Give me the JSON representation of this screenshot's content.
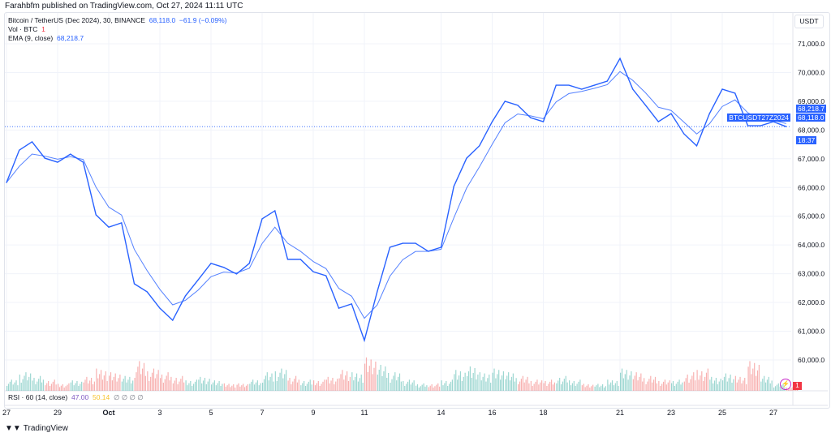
{
  "header": {
    "published": "Farahbfm published on TradingView.com, Oct 27, 2024 11:11 UTC"
  },
  "legend": {
    "symbol": "Bitcoin / TetherUS (Dec 2024), 30, BINANCE",
    "last": "68,118.0",
    "change": "−61.9 (−0.09%)",
    "vol_label": "Vol · BTC",
    "vol_value": "1",
    "ema_label": "EMA (9, close)",
    "ema_value": "68,218.7"
  },
  "price_axis": {
    "currency": "USDT",
    "ema_tag": "68,218.7",
    "last_tag": "68,118.0",
    "countdown": "18:37",
    "symbol_tag": "BTCUSDT27Z2024"
  },
  "rsi": {
    "label": "RSI · 60 (14, close)",
    "v1": "47.00",
    "v2": "50.14",
    "icons": "∅ ∅ ∅ ∅"
  },
  "badges": {
    "alert_count": "1"
  },
  "footer": {
    "brand": "TradingView"
  },
  "colors": {
    "price": "#2962ff",
    "up": "#26a69a",
    "down": "#ef5350",
    "grid": "#f0f3fa"
  },
  "chart_data": {
    "type": "line",
    "title": "Bitcoin / TetherUS (Dec 2024), 30, BINANCE",
    "ylim": [
      59500,
      71500
    ],
    "yticks": [
      60000,
      61000,
      62000,
      63000,
      64000,
      65000,
      66000,
      67000,
      68000,
      69000,
      70000,
      71000
    ],
    "ytick_labels": [
      "60,000.0",
      "61,000.0",
      "62,000.0",
      "63,000.0",
      "64,000.0",
      "65,000.0",
      "66,000.0",
      "67,000.0",
      "68,000.0",
      "69,000.0",
      "70,000.0",
      "71,000.0"
    ],
    "xtick_labels": [
      "27",
      "29",
      "Oct",
      "3",
      "5",
      "7",
      "9",
      "11",
      "14",
      "16",
      "18",
      "21",
      "23",
      "25",
      "27"
    ],
    "xtick_days": [
      0,
      2,
      4,
      6,
      8,
      10,
      12,
      14,
      17,
      19,
      21,
      24,
      26,
      28,
      30
    ],
    "grid": true,
    "series": [
      {
        "name": "BTCUSDT27Z2024",
        "x_half_days": [
          0,
          1,
          2,
          3,
          4,
          5,
          6,
          7,
          8,
          9,
          10,
          11,
          12,
          13,
          14,
          15,
          16,
          17,
          18,
          19,
          20,
          21,
          22,
          23,
          24,
          25,
          26,
          27,
          28,
          29,
          30,
          31,
          32,
          33,
          34,
          35,
          36,
          37,
          38,
          39,
          40,
          41,
          42,
          43,
          44,
          45,
          46,
          47,
          48,
          49,
          50,
          51,
          52,
          53,
          54,
          55,
          56,
          57,
          58,
          59,
          60,
          61
        ],
        "values": [
          66170,
          67300,
          67590,
          67020,
          66880,
          67160,
          66880,
          65050,
          64620,
          64770,
          62650,
          62370,
          61800,
          61380,
          62230,
          62790,
          63360,
          63220,
          62990,
          63360,
          64910,
          65190,
          63500,
          63500,
          63070,
          62930,
          61800,
          61950,
          60680,
          62370,
          63920,
          64060,
          64060,
          63780,
          63920,
          66040,
          67020,
          67450,
          68290,
          69000,
          68860,
          68430,
          68290,
          69560,
          69560,
          69420,
          69560,
          69700,
          70490,
          69420,
          68860,
          68290,
          68570,
          67870,
          67450,
          68570,
          69420,
          69280,
          68150,
          68150,
          68290,
          68118
        ]
      }
    ],
    "volume_relative": [
      3,
      5,
      4,
      3,
      2,
      3,
      4,
      6,
      5,
      4,
      8,
      6,
      5,
      4,
      3,
      4,
      3,
      2,
      2,
      3,
      5,
      6,
      4,
      3,
      3,
      4,
      6,
      5,
      9,
      7,
      5,
      3,
      2,
      2,
      3,
      6,
      7,
      5,
      6,
      5,
      4,
      3,
      3,
      4,
      3,
      2,
      2,
      3,
      6,
      5,
      4,
      3,
      3,
      5,
      6,
      4,
      5,
      4,
      8,
      4,
      2,
      1
    ]
  }
}
